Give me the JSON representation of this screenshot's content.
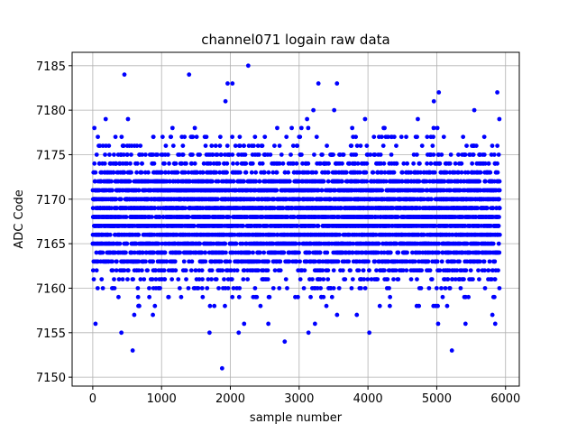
{
  "chart_data": {
    "type": "scatter",
    "title": "channel071 logain raw data",
    "xlabel": "sample number",
    "ylabel": "ADC Code",
    "xlim": [
      -300,
      6200
    ],
    "ylim": [
      7149,
      7186.5
    ],
    "x_ticks": [
      0,
      1000,
      2000,
      3000,
      4000,
      5000,
      6000
    ],
    "y_ticks": [
      7150,
      7155,
      7160,
      7165,
      7170,
      7175,
      7180,
      7185
    ],
    "grid": true,
    "marker_color": "#0000ff",
    "n_samples": 5917,
    "x_range": [
      0,
      5916
    ],
    "series": [
      {
        "values_range": [
          7151,
          7185
        ],
        "dense_band": [
          7159,
          7177
        ],
        "outliers": [
          {
            "x": 40,
            "y": 7156
          },
          {
            "x": 580,
            "y": 7153
          },
          {
            "x": 460,
            "y": 7184
          },
          {
            "x": 1400,
            "y": 7184
          },
          {
            "x": 1880,
            "y": 7151
          },
          {
            "x": 2260,
            "y": 7185
          },
          {
            "x": 2200,
            "y": 7156
          },
          {
            "x": 2790,
            "y": 7154
          },
          {
            "x": 3230,
            "y": 7156
          },
          {
            "x": 4020,
            "y": 7155
          },
          {
            "x": 5220,
            "y": 7153
          },
          {
            "x": 5020,
            "y": 7156
          },
          {
            "x": 5850,
            "y": 7156
          },
          {
            "x": 1960,
            "y": 7183
          },
          {
            "x": 3280,
            "y": 7183
          },
          {
            "x": 3550,
            "y": 7183
          },
          {
            "x": 2030,
            "y": 7183
          },
          {
            "x": 5880,
            "y": 7182
          },
          {
            "x": 5030,
            "y": 7182
          }
        ]
      }
    ]
  }
}
